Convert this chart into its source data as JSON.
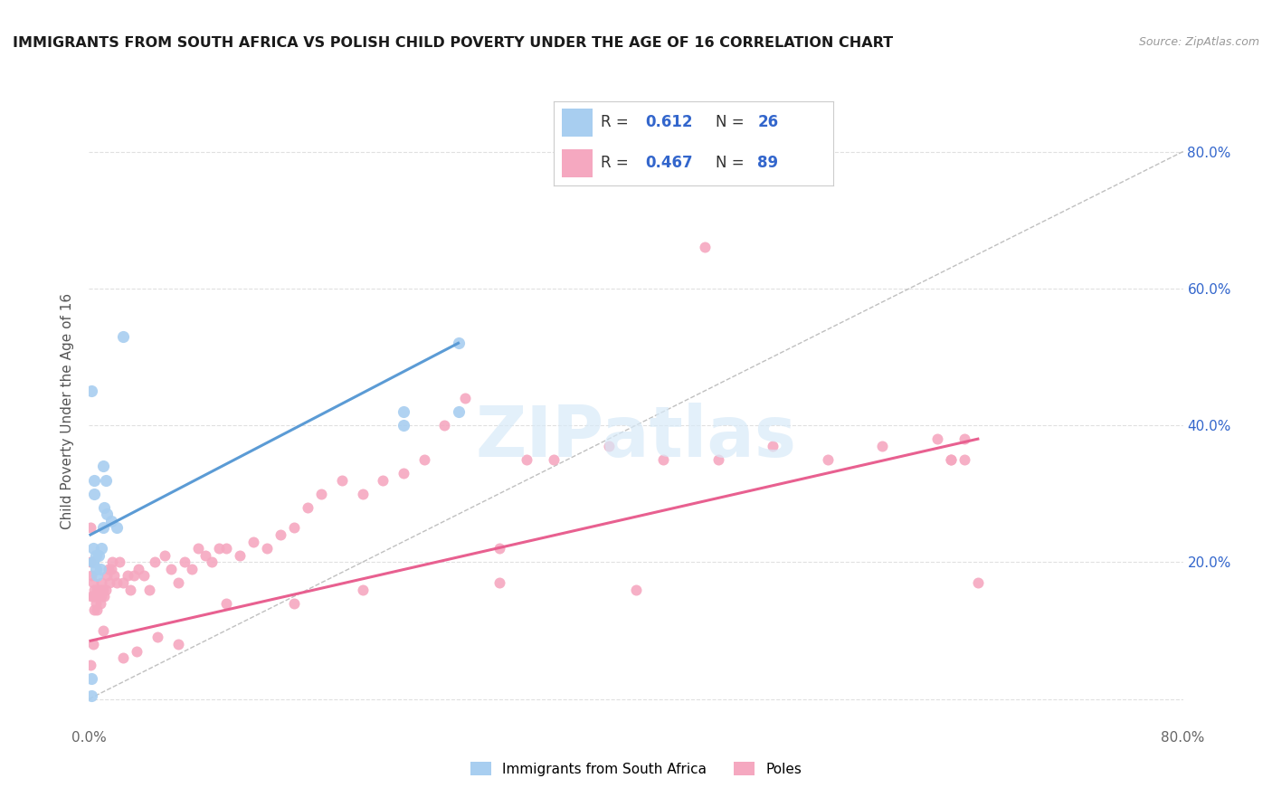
{
  "title": "IMMIGRANTS FROM SOUTH AFRICA VS POLISH CHILD POVERTY UNDER THE AGE OF 16 CORRELATION CHART",
  "source": "Source: ZipAtlas.com",
  "ylabel": "Child Poverty Under the Age of 16",
  "xlim": [
    0.0,
    0.8
  ],
  "ylim": [
    -0.04,
    0.88
  ],
  "xtick_positions": [
    0.0,
    0.1,
    0.2,
    0.3,
    0.4,
    0.5,
    0.6,
    0.7,
    0.8
  ],
  "xticklabels": [
    "0.0%",
    "",
    "",
    "",
    "",
    "",
    "",
    "",
    "80.0%"
  ],
  "ytick_positions": [
    0.0,
    0.2,
    0.4,
    0.6,
    0.8
  ],
  "yticklabels_right": [
    "",
    "20.0%",
    "40.0%",
    "60.0%",
    "80.0%"
  ],
  "series1_color": "#a8cef0",
  "series2_color": "#f5a8c0",
  "series1_label": "Immigrants from South Africa",
  "series2_label": "Poles",
  "r1": "0.612",
  "n1": "26",
  "r2": "0.467",
  "n2": "89",
  "trend1_color": "#5b9bd5",
  "trend2_color": "#e86090",
  "diag_color": "#c0c0c0",
  "background_color": "#ffffff",
  "grid_color": "#e0e0e0",
  "title_color": "#1a1a1a",
  "source_color": "#999999",
  "legend_text_color": "#3366cc",
  "watermark_color": "#d8eaf8",
  "series1_x": [
    0.002,
    0.002,
    0.003,
    0.003,
    0.004,
    0.004,
    0.005,
    0.006,
    0.007,
    0.008,
    0.009,
    0.01,
    0.011,
    0.012,
    0.013,
    0.016,
    0.02,
    0.025,
    0.27,
    0.27,
    0.23,
    0.23,
    0.002,
    0.003,
    0.005,
    0.01
  ],
  "series1_y": [
    0.005,
    0.03,
    0.2,
    0.22,
    0.3,
    0.32,
    0.19,
    0.18,
    0.21,
    0.19,
    0.22,
    0.25,
    0.28,
    0.32,
    0.27,
    0.26,
    0.25,
    0.53,
    0.42,
    0.52,
    0.4,
    0.42,
    0.45,
    0.2,
    0.21,
    0.34
  ],
  "trend1_x0": 0.001,
  "trend1_y0": 0.24,
  "trend1_x1": 0.27,
  "trend1_y1": 0.52,
  "trend2_x0": 0.001,
  "trend2_y0": 0.085,
  "trend2_x1": 0.65,
  "trend2_y1": 0.38,
  "series2_x": [
    0.001,
    0.001,
    0.002,
    0.002,
    0.003,
    0.003,
    0.004,
    0.004,
    0.005,
    0.005,
    0.006,
    0.006,
    0.007,
    0.007,
    0.008,
    0.008,
    0.009,
    0.009,
    0.01,
    0.011,
    0.012,
    0.013,
    0.014,
    0.015,
    0.016,
    0.017,
    0.018,
    0.02,
    0.022,
    0.025,
    0.028,
    0.03,
    0.033,
    0.036,
    0.04,
    0.044,
    0.048,
    0.055,
    0.06,
    0.065,
    0.07,
    0.075,
    0.08,
    0.085,
    0.09,
    0.095,
    0.1,
    0.11,
    0.12,
    0.13,
    0.14,
    0.15,
    0.16,
    0.17,
    0.185,
    0.2,
    0.215,
    0.23,
    0.245,
    0.26,
    0.275,
    0.3,
    0.32,
    0.34,
    0.38,
    0.42,
    0.46,
    0.5,
    0.54,
    0.58,
    0.62,
    0.63,
    0.64,
    0.64,
    0.65,
    0.001,
    0.003,
    0.01,
    0.025,
    0.035,
    0.05,
    0.065,
    0.1,
    0.15,
    0.2,
    0.3,
    0.4,
    0.45,
    0.63
  ],
  "series2_y": [
    0.25,
    0.2,
    0.18,
    0.15,
    0.17,
    0.15,
    0.16,
    0.13,
    0.14,
    0.15,
    0.16,
    0.13,
    0.15,
    0.16,
    0.14,
    0.16,
    0.15,
    0.17,
    0.16,
    0.15,
    0.16,
    0.18,
    0.19,
    0.17,
    0.19,
    0.2,
    0.18,
    0.17,
    0.2,
    0.17,
    0.18,
    0.16,
    0.18,
    0.19,
    0.18,
    0.16,
    0.2,
    0.21,
    0.19,
    0.17,
    0.2,
    0.19,
    0.22,
    0.21,
    0.2,
    0.22,
    0.22,
    0.21,
    0.23,
    0.22,
    0.24,
    0.25,
    0.28,
    0.3,
    0.32,
    0.3,
    0.32,
    0.33,
    0.35,
    0.4,
    0.44,
    0.22,
    0.35,
    0.35,
    0.37,
    0.35,
    0.35,
    0.37,
    0.35,
    0.37,
    0.38,
    0.35,
    0.35,
    0.38,
    0.17,
    0.05,
    0.08,
    0.1,
    0.06,
    0.07,
    0.09,
    0.08,
    0.14,
    0.14,
    0.16,
    0.17,
    0.16,
    0.66,
    0.35
  ]
}
